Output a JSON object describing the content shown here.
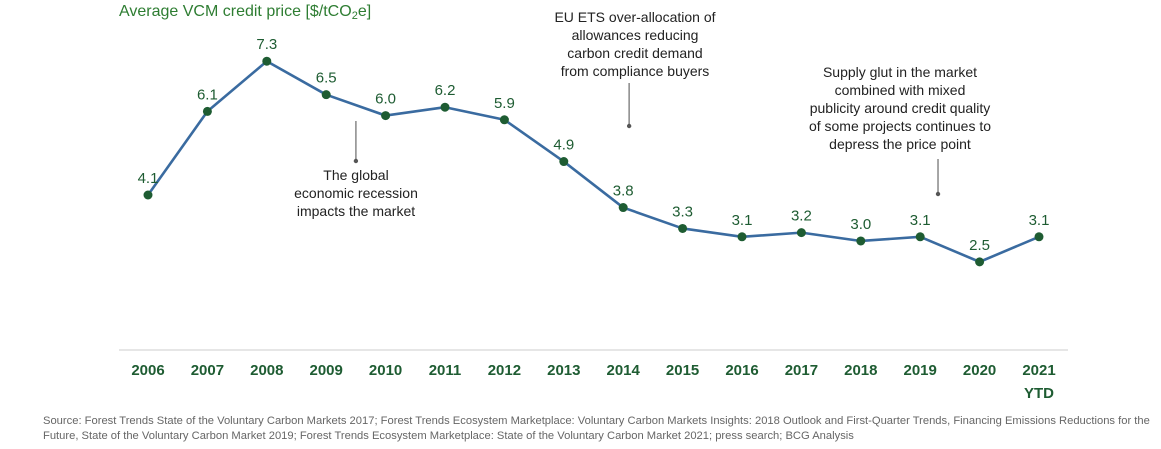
{
  "colors": {
    "line": "#3a6ba0",
    "point": "#1e5c32",
    "title": "#2e7d32",
    "label": "#1e5c32",
    "annotation_marker": "#888888",
    "axis": "#cccccc"
  },
  "chart_data": {
    "type": "line",
    "title_main": "Average VCM credit price [$/tCO",
    "title_sub": "2",
    "title_end": "e]",
    "categories": [
      "2006",
      "2007",
      "2008",
      "2009",
      "2010",
      "2011",
      "2012",
      "2013",
      "2014",
      "2015",
      "2016",
      "2017",
      "2018",
      "2019",
      "2020",
      "2021"
    ],
    "category_suffix": {
      "2021": "YTD"
    },
    "values": [
      4.1,
      6.1,
      7.3,
      6.5,
      6.0,
      6.2,
      5.9,
      4.9,
      3.8,
      3.3,
      3.1,
      3.2,
      3.0,
      3.1,
      2.5,
      3.1
    ],
    "value_labels": [
      "4.1",
      "6.1",
      "7.3",
      "6.5",
      "6.0",
      "6.2",
      "5.9",
      "4.9",
      "3.8",
      "3.3",
      "3.1",
      "3.2",
      "3.0",
      "3.1",
      "2.5",
      "3.1"
    ],
    "annotations": [
      {
        "text": "The global\neconomic recession\nimpacts the market",
        "year": 2009.5
      },
      {
        "text": "EU ETS over-allocation of\nallowances reducing\ncarbon credit demand\nfrom compliance buyers",
        "year": 2014.1
      },
      {
        "text": "Supply glut in the market\ncombined with mixed\npublicity around credit quality\nof some projects continues to\ndepress the price point",
        "year": 2019.3
      }
    ],
    "grid": false,
    "legend": "none"
  },
  "source": "Source: Forest Trends State of the Voluntary Carbon Markets 2017; Forest Trends Ecosystem Marketplace: Voluntary Carbon Markets Insights: 2018 Outlook and First-Quarter Trends, Financing Emissions Reductions for the Future, State of the Voluntary Carbon Market 2019; Forest Trends Ecosystem Marketplace: State of the Voluntary Carbon Market 2021; press search; BCG Analysis"
}
